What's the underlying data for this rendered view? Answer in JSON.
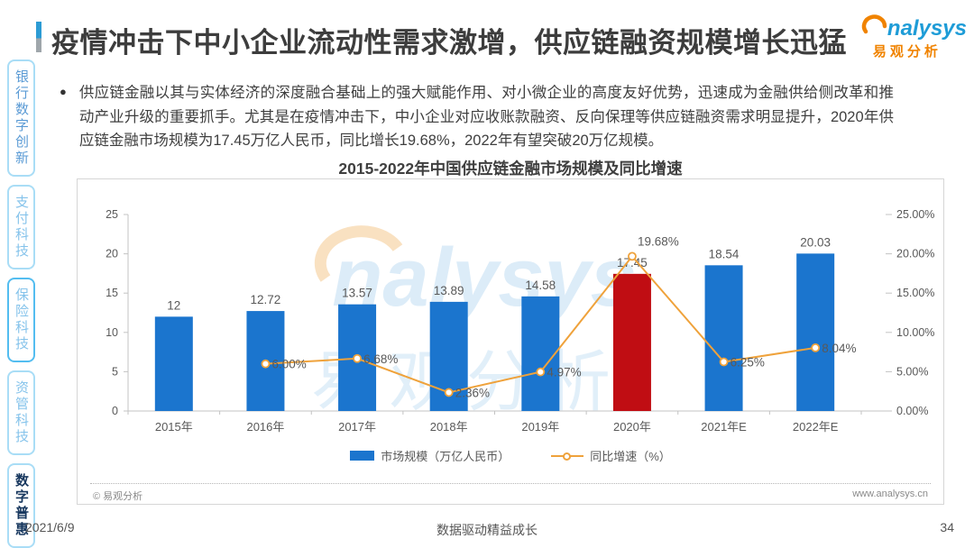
{
  "colors": {
    "accent_top": "#2C9BD4",
    "accent_bottom": "#9FA6AB",
    "bar_blue": "#1B75CE",
    "bar_red": "#C00D13",
    "line_orange": "#EFA23B",
    "tab_border": "#A9DDF6",
    "tab_border_active": "#53BDF0",
    "tab_text": "#85C3EB",
    "tab_text_primary": "#5B9BD5",
    "tab_text_active": "#17375E",
    "brand_blue": "#1E9CD7",
    "brand_orange": "#F08300"
  },
  "header": {
    "title": "疫情冲击下中小企业流动性需求激增，供应链融资规模增长迅猛"
  },
  "logo": {
    "brand_latin": "nalysys",
    "brand_cn": "易观分析"
  },
  "bullet": {
    "marker": "●",
    "text": "供应链金融以其与实体经济的深度融合基础上的强大赋能作用、对小微企业的高度友好优势，迅速成为金融供给侧改革和推动产业升级的重要抓手。尤其是在疫情冲击下，中小企业对应收账款融资、反向保理等供应链融资需求明显提升，2020年供应链金融市场规模为17.45万亿人民币，同比增长19.68%，2022年有望突破20万亿规模。"
  },
  "sidebar": {
    "items": [
      {
        "label": "银行数字创新",
        "style": "primary",
        "active": false
      },
      {
        "label": "支付科技",
        "style": "",
        "active": false
      },
      {
        "label": "保险科技",
        "style": "outlined",
        "active": false
      },
      {
        "label": "资管科技",
        "style": "",
        "active": false
      },
      {
        "label": "数字普惠",
        "style": "active",
        "active": true
      }
    ]
  },
  "chart_data": {
    "type": "bar+line",
    "title": "2015-2022年中国供应链金融市场规模及同比增速",
    "categories": [
      "2015年",
      "2016年",
      "2017年",
      "2018年",
      "2019年",
      "2020年",
      "2021年E",
      "2022年E"
    ],
    "series": [
      {
        "name": "市场规模（万亿人民币）",
        "type": "bar",
        "color": "#1B75CE",
        "highlight_index": 5,
        "highlight_color": "#C00D13",
        "values": [
          12,
          12.72,
          13.57,
          13.89,
          14.58,
          17.45,
          18.54,
          20.03
        ]
      },
      {
        "name": "同比增速（%）",
        "type": "line",
        "color": "#EFA23B",
        "values": [
          null,
          6.0,
          6.68,
          2.36,
          4.97,
          19.68,
          6.25,
          8.04
        ],
        "point_labels": [
          "",
          "6.00%",
          "6.68%",
          "2.36%",
          "4.97%",
          "19.68%",
          "6.25%",
          "8.04%"
        ]
      }
    ],
    "left_axis": {
      "ticks": [
        0,
        5,
        10,
        15,
        20,
        25
      ],
      "min": 0,
      "max": 25
    },
    "right_axis": {
      "ticks": [
        "0.00%",
        "5.00%",
        "10.00%",
        "15.00%",
        "20.00%",
        "25.00%"
      ],
      "min": 0,
      "max": 25
    },
    "legend_position": "bottom",
    "grid": false
  },
  "watermark": {
    "brand_latin": "nalysys",
    "brand_cn": "易观分析"
  },
  "chart_footer": {
    "copyright": "© 易观分析",
    "website": "www.analysys.cn"
  },
  "page_footer": {
    "date": "2021/6/9",
    "slogan": "数据驱动精益成长",
    "page": "34"
  }
}
